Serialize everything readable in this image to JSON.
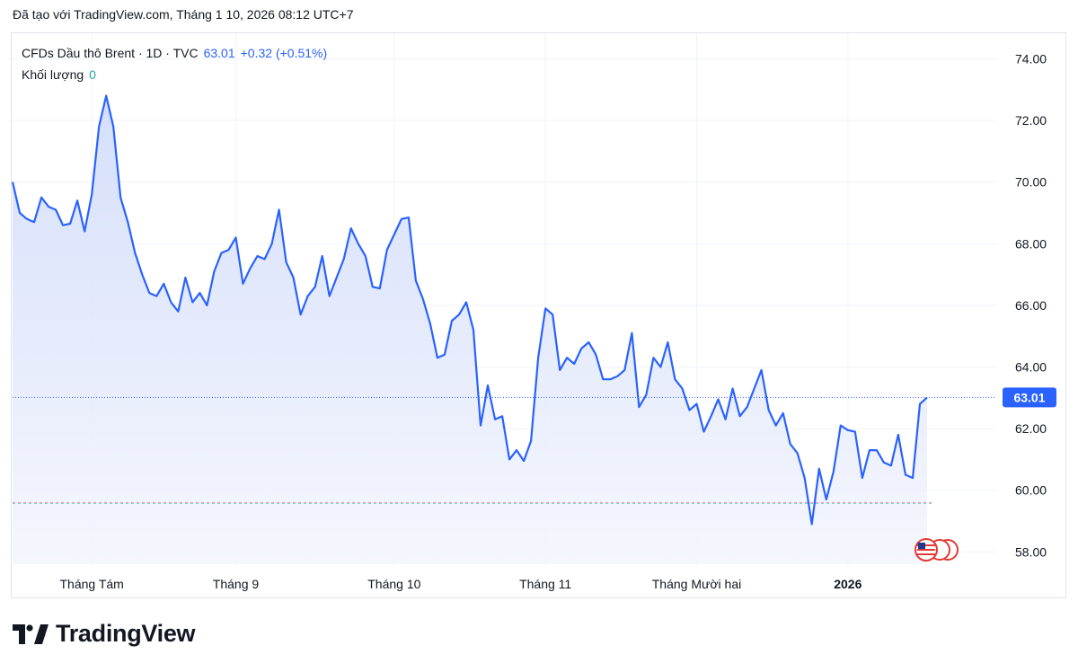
{
  "header": {
    "text": "Đã tạo với TradingView.com, Tháng 1 10, 2026 08:12 UTC+7"
  },
  "legend": {
    "symbol": "CFDs Dầu thô Brent · 1D · TVC",
    "price": "63.01",
    "change": "+0.32 (+0.51%)",
    "volume_label": "Khối lượng",
    "volume_value": "0"
  },
  "footer": {
    "brand": "TradingView"
  },
  "colors": {
    "line": "#2962ff",
    "area_top": "#dbe3fb",
    "area_bottom": "#f6f8fe",
    "grid": "#f0f3fa",
    "last_price_bg": "#2962ff",
    "low_line": "#ef5350"
  },
  "chart_data": {
    "type": "area",
    "title": "CFDs Dầu thô Brent · 1D · TVC",
    "x_tick_labels": [
      "Tháng Tám",
      "Tháng 9",
      "Tháng 10",
      "Tháng 11",
      "Tháng Mười hai",
      "2026"
    ],
    "y_tick_labels": [
      "74.00",
      "72.00",
      "70.00",
      "68.00",
      "66.00",
      "64.00",
      "62.00",
      "60.00",
      "58.00"
    ],
    "ylim": [
      57.6,
      74.8
    ],
    "y_ticks": [
      74,
      72,
      70,
      68,
      66,
      64,
      62,
      60,
      58
    ],
    "last_price_label": "63.01",
    "last_price": 63.01,
    "reference_low": 59.6,
    "series": [
      {
        "values": [
          70.0,
          69.0,
          68.8,
          68.7,
          69.5,
          69.2,
          69.1,
          68.6,
          68.65,
          69.4,
          68.4,
          69.6,
          71.8,
          72.8,
          71.8,
          69.5,
          68.7,
          67.7,
          67.0,
          66.4,
          66.3,
          66.7,
          66.1,
          65.8,
          66.9,
          66.1,
          66.4,
          66.0,
          67.1,
          67.7,
          67.8,
          68.2,
          66.7,
          67.2,
          67.6,
          67.5,
          68.0,
          69.1,
          67.4,
          66.9,
          65.7,
          66.3,
          66.6,
          67.6,
          66.3,
          66.9,
          67.5,
          68.5,
          68.0,
          67.6,
          66.6,
          66.55,
          67.8,
          68.3,
          68.8,
          68.85,
          66.8,
          66.2,
          65.4,
          64.3,
          64.4,
          65.5,
          65.7,
          66.1,
          65.2,
          62.1,
          63.4,
          62.3,
          62.4,
          61.0,
          61.3,
          60.95,
          61.6,
          64.3,
          65.9,
          65.7,
          63.9,
          64.3,
          64.1,
          64.6,
          64.8,
          64.4,
          63.6,
          63.6,
          63.7,
          63.9,
          65.1,
          62.7,
          63.1,
          64.3,
          64.0,
          64.8,
          63.6,
          63.3,
          62.6,
          62.8,
          61.9,
          62.4,
          62.95,
          62.3,
          63.3,
          62.4,
          62.7,
          63.3,
          63.9,
          62.6,
          62.1,
          62.5,
          61.5,
          61.2,
          60.4,
          58.9,
          60.7,
          59.7,
          60.6,
          62.1,
          61.95,
          61.9,
          60.4,
          61.3,
          61.3,
          60.9,
          60.8,
          61.8,
          60.5,
          60.4,
          62.8,
          63.01
        ]
      }
    ]
  }
}
